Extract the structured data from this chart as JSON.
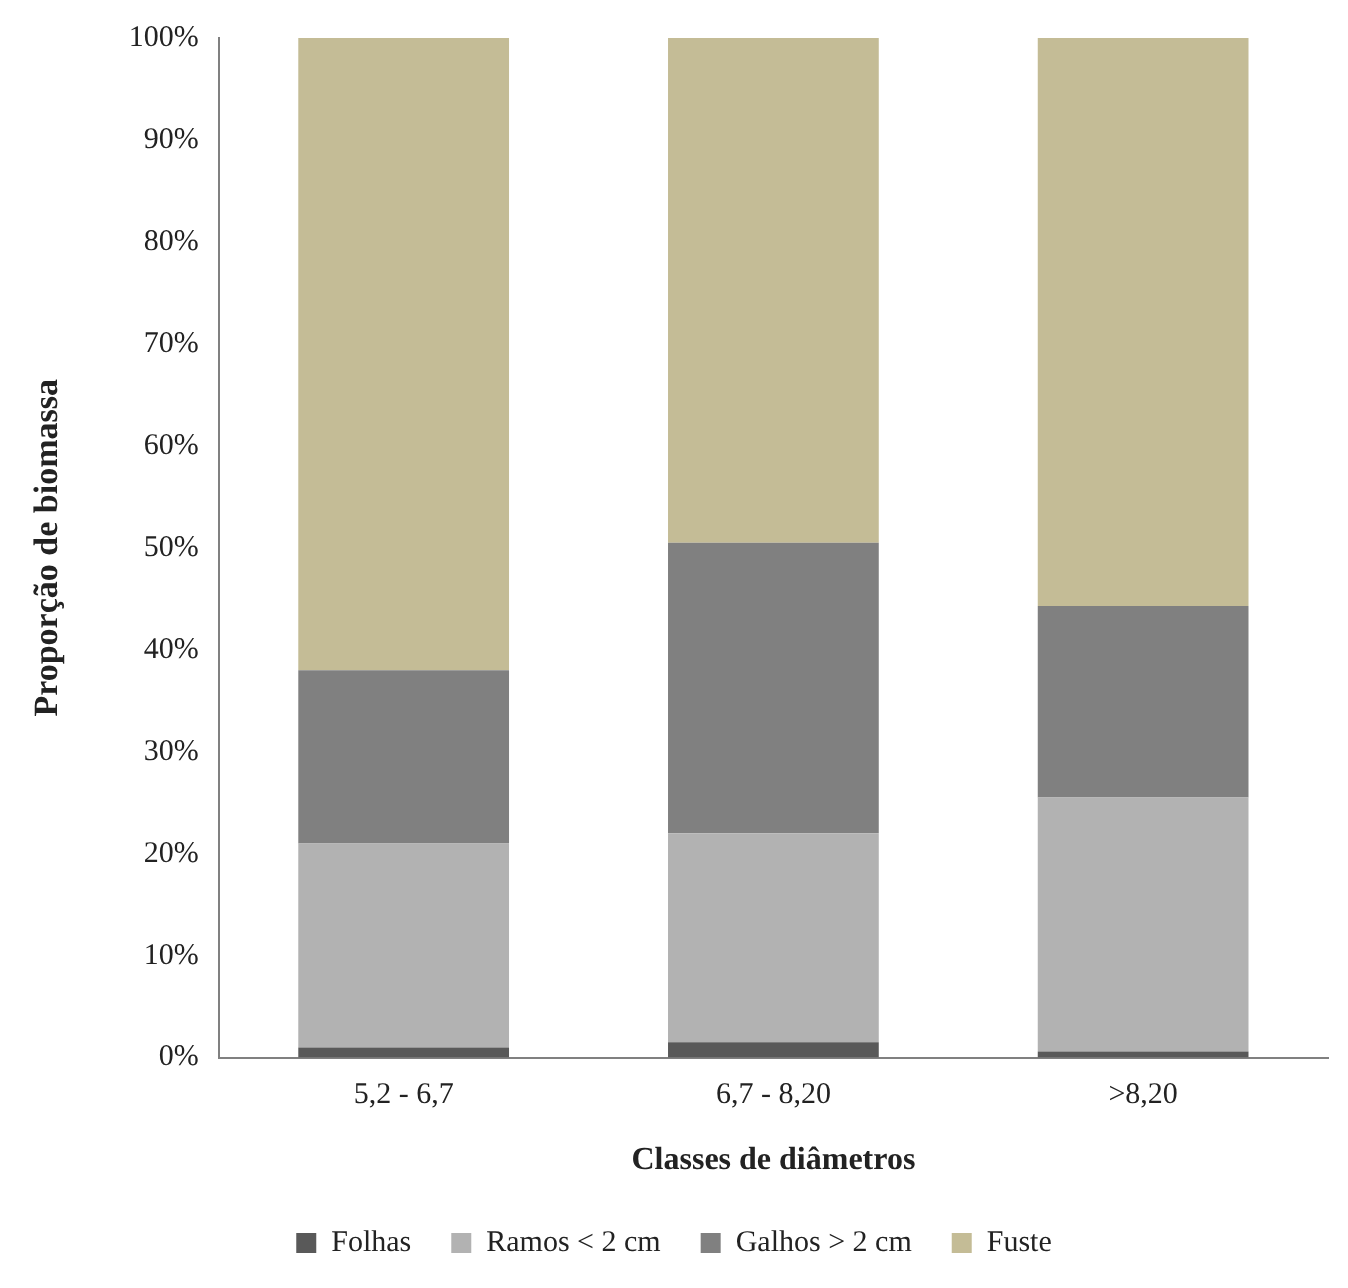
{
  "chart_data": {
    "type": "bar",
    "stacked": true,
    "xlabel": "Classes de diâmetros",
    "ylabel": "Proporção de biomassa",
    "categories": [
      "5,2 - 6,7",
      "6,7 - 8,20",
      ">8,20"
    ],
    "series": [
      {
        "name": "Folhas",
        "color": "#595959",
        "values": [
          1,
          1.5,
          0.6
        ]
      },
      {
        "name": "Ramos < 2 cm",
        "color": "#b2b2b2",
        "values": [
          20,
          20.5,
          24.9
        ]
      },
      {
        "name": "Galhos > 2 cm",
        "color": "#808080",
        "values": [
          17,
          28.5,
          18.8
        ]
      },
      {
        "name": "Fuste",
        "color": "#c4bc96",
        "values": [
          62,
          49.5,
          55.7
        ]
      }
    ],
    "ylim": [
      0,
      100
    ],
    "yticks": [
      {
        "value": 0,
        "label": "0%"
      },
      {
        "value": 10,
        "label": "10%"
      },
      {
        "value": 20,
        "label": "20%"
      },
      {
        "value": 30,
        "label": "30%"
      },
      {
        "value": 40,
        "label": "40%"
      },
      {
        "value": 50,
        "label": "50%"
      },
      {
        "value": 60,
        "label": "60%"
      },
      {
        "value": 70,
        "label": "70%"
      },
      {
        "value": 80,
        "label": "80%"
      },
      {
        "value": 90,
        "label": "90%"
      },
      {
        "value": 100,
        "label": "100%"
      }
    ],
    "grid": false,
    "legend": "bottom"
  }
}
